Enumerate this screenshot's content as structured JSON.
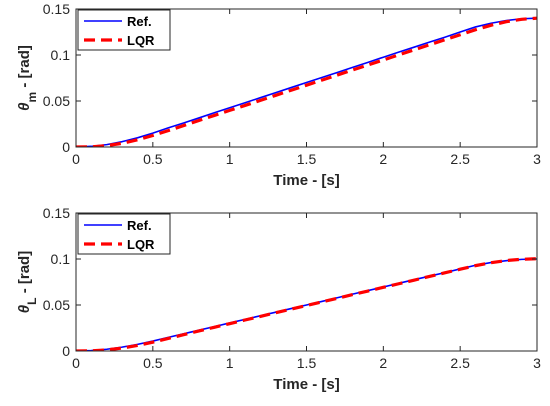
{
  "chart_data": [
    {
      "type": "line",
      "xlabel": "Time - [s]",
      "ylabel_symbol": "θ",
      "ylabel_subscript": "m",
      "ylabel_unit": " - [rad]",
      "xlim": [
        0,
        3
      ],
      "ylim": [
        0,
        0.15
      ],
      "xticks": [
        "0",
        "0.5",
        "1",
        "1.5",
        "2",
        "2.5",
        "3"
      ],
      "yticks": [
        "0",
        "0.05",
        "0.1",
        "0.15"
      ],
      "grid": false,
      "legend_position": "top-left",
      "x": [
        0,
        0.1,
        0.2,
        0.3,
        0.4,
        0.5,
        0.6,
        0.7,
        0.8,
        0.9,
        1.0,
        1.1,
        1.2,
        1.3,
        1.4,
        1.5,
        1.6,
        1.7,
        1.8,
        1.9,
        2.0,
        2.1,
        2.2,
        2.3,
        2.4,
        2.5,
        2.6,
        2.7,
        2.8,
        2.9,
        3.0
      ],
      "series": [
        {
          "name": "Ref.",
          "color": "#0000ff",
          "style": "solid",
          "values": [
            0,
            0.0007,
            0.0026,
            0.0058,
            0.01,
            0.0151,
            0.0208,
            0.0261,
            0.0316,
            0.0372,
            0.0427,
            0.0481,
            0.0536,
            0.0591,
            0.0646,
            0.0701,
            0.0756,
            0.081,
            0.0866,
            0.092,
            0.0976,
            0.1031,
            0.1085,
            0.114,
            0.1193,
            0.125,
            0.1305,
            0.1345,
            0.1375,
            0.1394,
            0.14
          ]
        },
        {
          "name": "LQR",
          "color": "#ff0000",
          "style": "dashed",
          "values": [
            0,
            0.0002,
            0.0015,
            0.004,
            0.0078,
            0.0125,
            0.0178,
            0.0233,
            0.0288,
            0.0343,
            0.0398,
            0.0452,
            0.0507,
            0.0562,
            0.0617,
            0.0672,
            0.0727,
            0.0782,
            0.0837,
            0.0892,
            0.0946,
            0.1002,
            0.1056,
            0.1111,
            0.1165,
            0.122,
            0.1275,
            0.1323,
            0.1362,
            0.1388,
            0.14
          ]
        }
      ]
    },
    {
      "type": "line",
      "xlabel": "Time - [s]",
      "ylabel_symbol": "θ",
      "ylabel_subscript": "L",
      "ylabel_unit": " - [rad]",
      "xlim": [
        0,
        3
      ],
      "ylim": [
        0,
        0.15
      ],
      "xticks": [
        "0",
        "0.5",
        "1",
        "1.5",
        "2",
        "2.5",
        "3"
      ],
      "yticks": [
        "0",
        "0.05",
        "0.1",
        "0.15"
      ],
      "grid": false,
      "legend_position": "top-left",
      "x": [
        0,
        0.1,
        0.2,
        0.3,
        0.4,
        0.5,
        0.6,
        0.7,
        0.8,
        0.9,
        1.0,
        1.1,
        1.2,
        1.3,
        1.4,
        1.5,
        1.6,
        1.7,
        1.8,
        1.9,
        2.0,
        2.1,
        2.2,
        2.3,
        2.4,
        2.5,
        2.6,
        2.7,
        2.8,
        2.9,
        3.0
      ],
      "series": [
        {
          "name": "Ref.",
          "color": "#0000ff",
          "style": "solid",
          "values": [
            0,
            0.0005,
            0.0019,
            0.0042,
            0.0072,
            0.0108,
            0.0148,
            0.0187,
            0.0226,
            0.0265,
            0.0305,
            0.0344,
            0.0383,
            0.0422,
            0.0461,
            0.05,
            0.0539,
            0.0579,
            0.0618,
            0.0657,
            0.0696,
            0.0736,
            0.0775,
            0.0813,
            0.0852,
            0.0892,
            0.0932,
            0.0961,
            0.0982,
            0.0996,
            0.1
          ]
        },
        {
          "name": "LQR",
          "color": "#ff0000",
          "style": "dashed",
          "values": [
            0,
            0.0002,
            0.0012,
            0.0032,
            0.006,
            0.0096,
            0.0136,
            0.0177,
            0.0218,
            0.0258,
            0.0297,
            0.0337,
            0.0376,
            0.0416,
            0.0455,
            0.0494,
            0.0534,
            0.0573,
            0.0613,
            0.0652,
            0.0692,
            0.0731,
            0.077,
            0.081,
            0.085,
            0.0889,
            0.0928,
            0.096,
            0.0983,
            0.0997,
            0.1003
          ]
        }
      ]
    }
  ]
}
